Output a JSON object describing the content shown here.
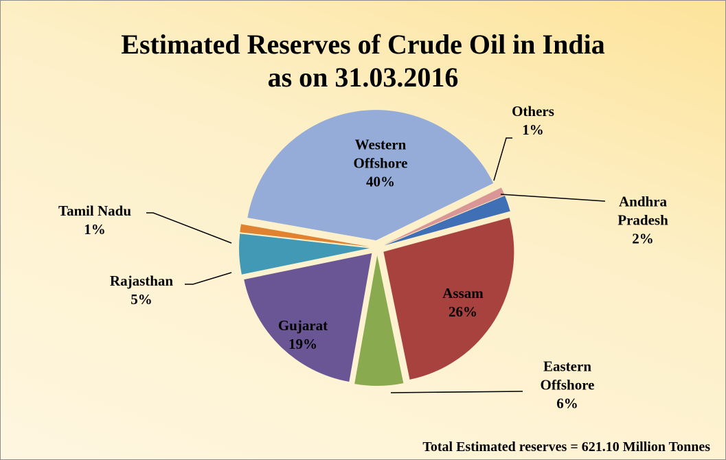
{
  "chart_data": {
    "type": "pie",
    "title": "Estimated Reserves of Crude Oil in India",
    "subtitle": "as on 31.03.2016",
    "categories": [
      "Others",
      "Andhra Pradesh",
      "Assam",
      "Eastern Offshore",
      "Gujarat",
      "Rajasthan",
      "Tamil Nadu",
      "Western Offshore"
    ],
    "values": [
      1,
      2,
      26,
      6,
      19,
      5,
      1,
      40
    ],
    "value_labels": [
      "1%",
      "2%",
      "26%",
      "6%",
      "19%",
      "5%",
      "1%",
      "40%"
    ],
    "colors": [
      "#d99694",
      "#3f6fb4",
      "#a8423f",
      "#8aaa4f",
      "#6a5595",
      "#4299b5",
      "#e0822f",
      "#95acd8"
    ],
    "annotation": "Total Estimated reserves  = 621.10 Million Tonnes"
  }
}
